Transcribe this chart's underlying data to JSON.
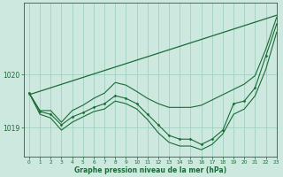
{
  "title": "Graphe pression niveau de la mer (hPa)",
  "background_color": "#cce8df",
  "grid_color": "#99ccbb",
  "line_color": "#1a6b35",
  "xlim": [
    -0.5,
    23
  ],
  "ylim": [
    1018.45,
    1021.35
  ],
  "yticks": [
    1019,
    1020
  ],
  "xticks": [
    0,
    1,
    2,
    3,
    4,
    5,
    6,
    7,
    8,
    9,
    10,
    11,
    12,
    13,
    14,
    15,
    16,
    17,
    18,
    19,
    20,
    21,
    22,
    23
  ],
  "hours": [
    0,
    1,
    2,
    3,
    4,
    5,
    6,
    7,
    8,
    9,
    10,
    11,
    12,
    13,
    14,
    15,
    16,
    17,
    18,
    19,
    20,
    21,
    22,
    23
  ],
  "main_line": [
    1019.65,
    1019.3,
    1019.25,
    1019.05,
    1019.2,
    1019.28,
    1019.38,
    1019.45,
    1019.6,
    1019.55,
    1019.45,
    1019.25,
    1019.05,
    1018.85,
    1018.78,
    1018.78,
    1018.68,
    1018.78,
    1018.95,
    1019.45,
    1019.5,
    1019.75,
    1020.35,
    1020.95
  ],
  "upper_line": [
    1019.65,
    1019.32,
    1019.32,
    1019.1,
    1019.32,
    1019.42,
    1019.55,
    1019.65,
    1019.85,
    1019.8,
    1019.68,
    1019.55,
    1019.45,
    1019.38,
    1019.38,
    1019.38,
    1019.42,
    1019.52,
    1019.62,
    1019.72,
    1019.82,
    1019.98,
    1020.48,
    1021.08
  ],
  "lower_line": [
    1019.65,
    1019.25,
    1019.18,
    1018.95,
    1019.1,
    1019.2,
    1019.3,
    1019.35,
    1019.5,
    1019.45,
    1019.35,
    1019.15,
    1018.9,
    1018.72,
    1018.65,
    1018.65,
    1018.58,
    1018.68,
    1018.88,
    1019.25,
    1019.35,
    1019.6,
    1020.1,
    1020.8
  ],
  "trend_x": [
    0,
    23
  ],
  "trend_y": [
    1019.62,
    1021.12
  ],
  "figsize": [
    3.2,
    2.0
  ],
  "dpi": 100
}
